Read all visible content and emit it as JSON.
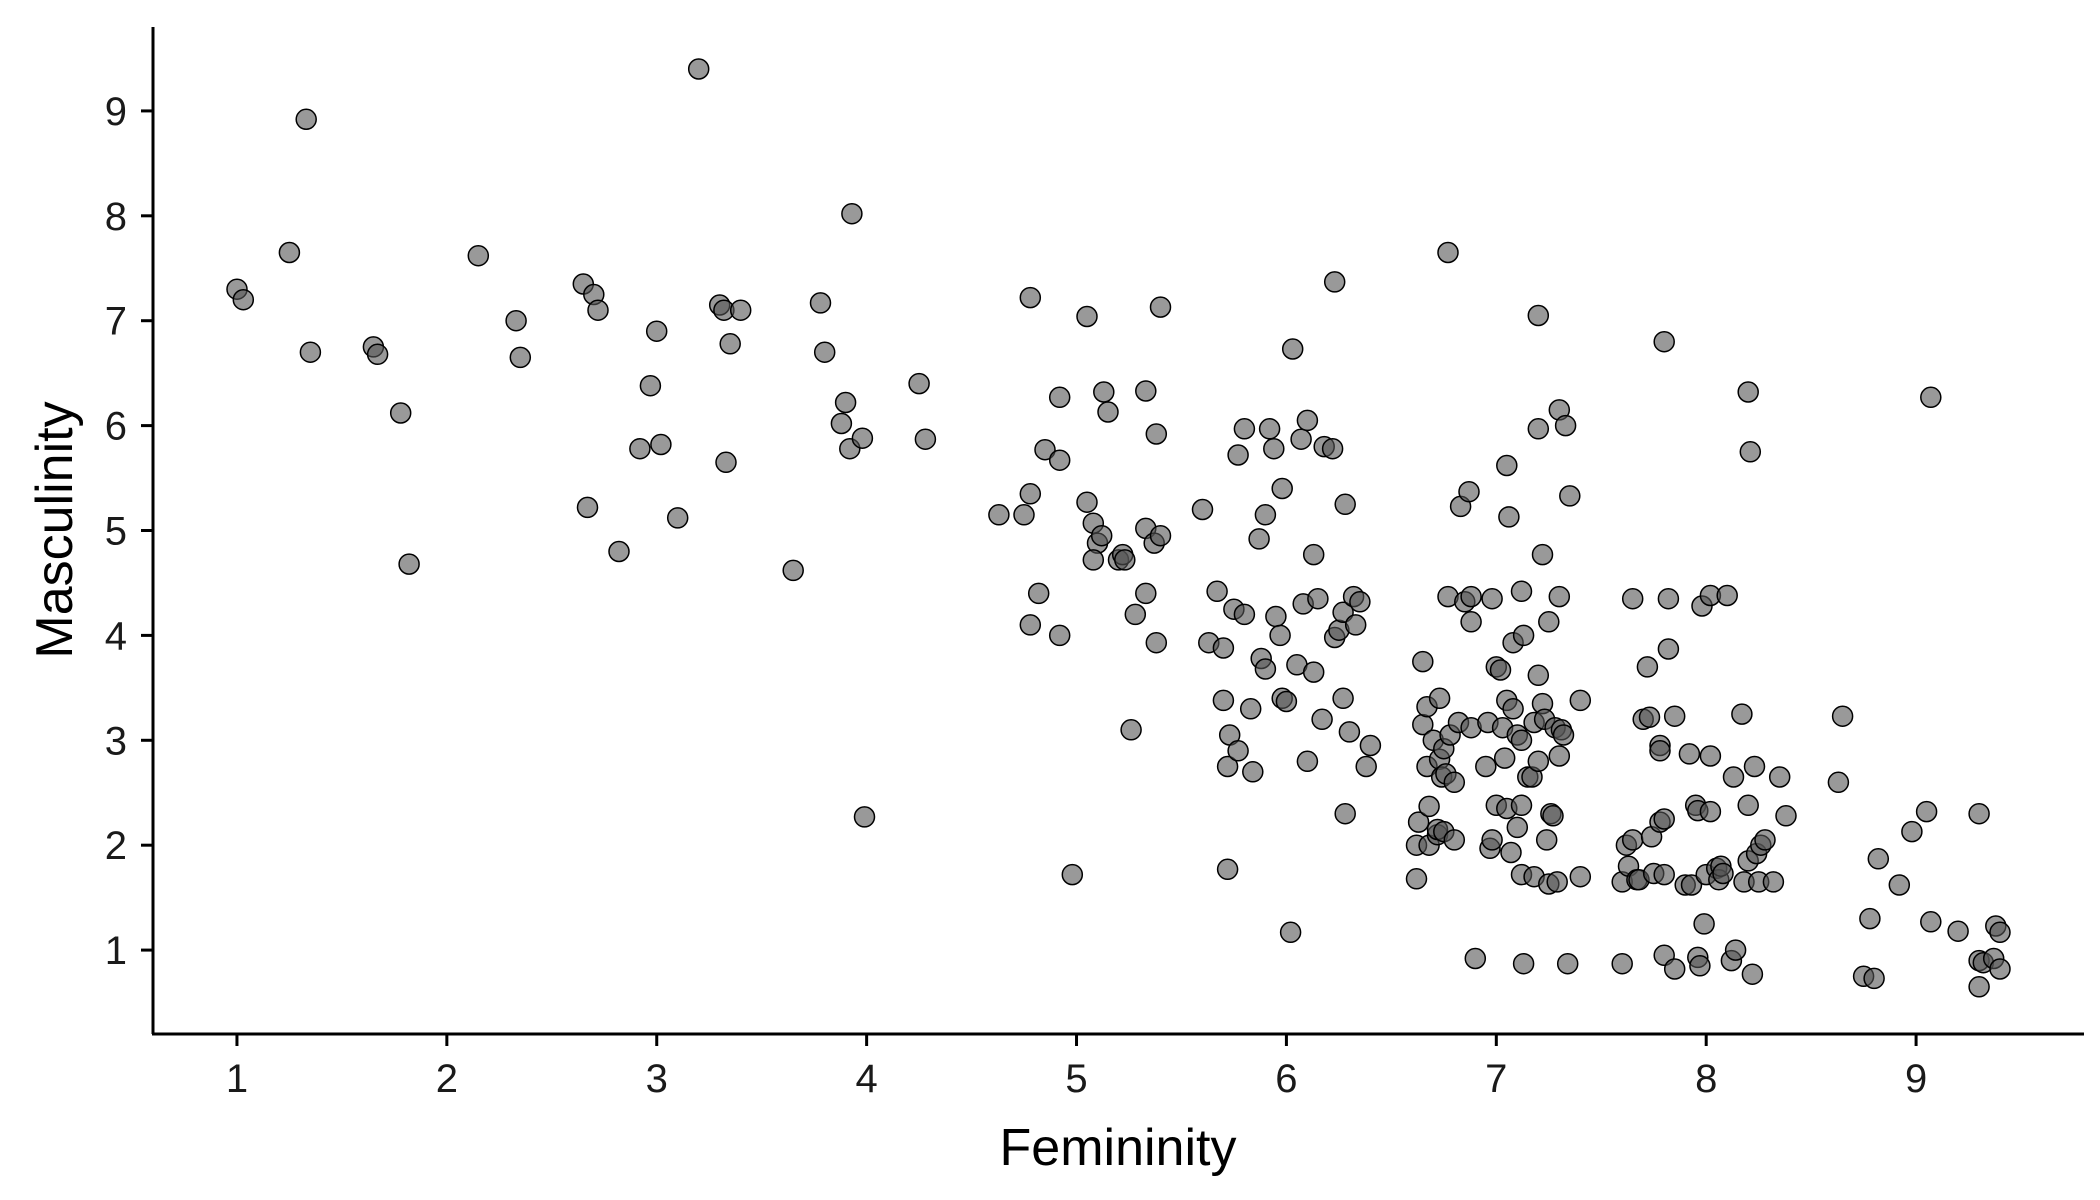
{
  "chart_data": {
    "type": "scatter",
    "xlabel": "Femininity",
    "ylabel": "Masculinity",
    "xlim": [
      0.6,
      9.8
    ],
    "ylim": [
      0.2,
      9.8
    ],
    "x_ticks": [
      1,
      2,
      3,
      4,
      5,
      6,
      7,
      8,
      9
    ],
    "y_ticks": [
      1,
      2,
      3,
      4,
      5,
      6,
      7,
      8,
      9
    ],
    "grid": false,
    "legend": "none",
    "point_color": "#555555",
    "point_opacity": 0.6,
    "points": [
      [
        1.0,
        7.3
      ],
      [
        1.03,
        7.2
      ],
      [
        1.25,
        7.65
      ],
      [
        1.33,
        8.92
      ],
      [
        1.35,
        6.7
      ],
      [
        1.65,
        6.75
      ],
      [
        1.67,
        6.68
      ],
      [
        1.78,
        6.12
      ],
      [
        1.82,
        4.68
      ],
      [
        2.15,
        7.62
      ],
      [
        2.33,
        7.0
      ],
      [
        2.35,
        6.65
      ],
      [
        2.65,
        7.35
      ],
      [
        2.7,
        7.25
      ],
      [
        2.72,
        7.1
      ],
      [
        2.67,
        5.22
      ],
      [
        2.82,
        4.8
      ],
      [
        2.92,
        5.78
      ],
      [
        2.97,
        6.38
      ],
      [
        3.0,
        6.9
      ],
      [
        3.02,
        5.82
      ],
      [
        3.1,
        5.12
      ],
      [
        3.2,
        9.4
      ],
      [
        3.3,
        7.15
      ],
      [
        3.32,
        7.1
      ],
      [
        3.35,
        6.78
      ],
      [
        3.33,
        5.65
      ],
      [
        3.4,
        7.1
      ],
      [
        3.65,
        4.62
      ],
      [
        3.78,
        7.17
      ],
      [
        3.8,
        6.7
      ],
      [
        3.9,
        6.22
      ],
      [
        3.88,
        6.02
      ],
      [
        3.92,
        5.78
      ],
      [
        3.98,
        5.88
      ],
      [
        3.93,
        8.02
      ],
      [
        3.99,
        2.27
      ],
      [
        4.25,
        6.4
      ],
      [
        4.28,
        5.87
      ],
      [
        4.63,
        5.15
      ],
      [
        4.75,
        5.15
      ],
      [
        4.78,
        5.35
      ],
      [
        4.78,
        4.1
      ],
      [
        4.78,
        7.22
      ],
      [
        4.82,
        4.4
      ],
      [
        4.85,
        5.77
      ],
      [
        4.92,
        6.27
      ],
      [
        4.92,
        5.67
      ],
      [
        4.92,
        4.0
      ],
      [
        4.98,
        1.72
      ],
      [
        5.05,
        7.04
      ],
      [
        5.05,
        5.27
      ],
      [
        5.08,
        5.07
      ],
      [
        5.1,
        4.88
      ],
      [
        5.12,
        4.95
      ],
      [
        5.13,
        6.32
      ],
      [
        5.15,
        6.13
      ],
      [
        5.08,
        4.72
      ],
      [
        5.2,
        4.72
      ],
      [
        5.22,
        4.77
      ],
      [
        5.23,
        4.72
      ],
      [
        5.26,
        3.1
      ],
      [
        5.28,
        4.2
      ],
      [
        5.33,
        6.33
      ],
      [
        5.33,
        5.02
      ],
      [
        5.33,
        4.4
      ],
      [
        5.37,
        4.88
      ],
      [
        5.38,
        3.93
      ],
      [
        5.4,
        4.95
      ],
      [
        5.38,
        5.92
      ],
      [
        5.4,
        7.13
      ],
      [
        5.6,
        5.2
      ],
      [
        5.63,
        3.93
      ],
      [
        5.67,
        4.42
      ],
      [
        5.7,
        3.38
      ],
      [
        5.7,
        3.88
      ],
      [
        5.72,
        2.75
      ],
      [
        5.72,
        1.77
      ],
      [
        5.73,
        3.05
      ],
      [
        5.75,
        4.25
      ],
      [
        5.77,
        5.72
      ],
      [
        5.77,
        2.9
      ],
      [
        5.8,
        5.97
      ],
      [
        5.8,
        4.2
      ],
      [
        5.83,
        3.3
      ],
      [
        5.84,
        2.7
      ],
      [
        5.87,
        4.92
      ],
      [
        5.88,
        3.78
      ],
      [
        5.9,
        5.15
      ],
      [
        5.9,
        3.68
      ],
      [
        5.92,
        5.97
      ],
      [
        5.94,
        5.78
      ],
      [
        5.95,
        4.18
      ],
      [
        5.97,
        4.0
      ],
      [
        5.98,
        5.4
      ],
      [
        5.98,
        3.4
      ],
      [
        6.0,
        3.37
      ],
      [
        6.02,
        1.17
      ],
      [
        6.03,
        6.73
      ],
      [
        6.05,
        3.72
      ],
      [
        6.07,
        5.87
      ],
      [
        6.08,
        4.3
      ],
      [
        6.1,
        6.05
      ],
      [
        6.1,
        2.8
      ],
      [
        6.13,
        4.77
      ],
      [
        6.13,
        3.65
      ],
      [
        6.15,
        4.35
      ],
      [
        6.17,
        3.2
      ],
      [
        6.18,
        5.8
      ],
      [
        6.22,
        5.78
      ],
      [
        6.23,
        7.37
      ],
      [
        6.23,
        3.98
      ],
      [
        6.25,
        4.05
      ],
      [
        6.27,
        4.22
      ],
      [
        6.27,
        3.4
      ],
      [
        6.28,
        5.25
      ],
      [
        6.28,
        2.3
      ],
      [
        6.3,
        3.08
      ],
      [
        6.32,
        4.37
      ],
      [
        6.33,
        4.1
      ],
      [
        6.35,
        4.32
      ],
      [
        6.38,
        2.75
      ],
      [
        6.4,
        2.95
      ],
      [
        6.62,
        1.68
      ],
      [
        6.62,
        2.0
      ],
      [
        6.63,
        2.22
      ],
      [
        6.65,
        3.75
      ],
      [
        6.65,
        3.15
      ],
      [
        6.67,
        3.32
      ],
      [
        6.67,
        2.75
      ],
      [
        6.68,
        2.37
      ],
      [
        6.68,
        2.0
      ],
      [
        6.7,
        3.0
      ],
      [
        6.72,
        2.1
      ],
      [
        6.72,
        2.15
      ],
      [
        6.73,
        2.82
      ],
      [
        6.73,
        3.4
      ],
      [
        6.74,
        2.65
      ],
      [
        6.75,
        2.92
      ],
      [
        6.75,
        2.13
      ],
      [
        6.76,
        2.68
      ],
      [
        6.77,
        4.37
      ],
      [
        6.77,
        7.65
      ],
      [
        6.78,
        3.05
      ],
      [
        6.8,
        2.6
      ],
      [
        6.8,
        2.05
      ],
      [
        6.82,
        3.17
      ],
      [
        6.83,
        5.23
      ],
      [
        6.85,
        4.32
      ],
      [
        6.87,
        5.37
      ],
      [
        6.88,
        4.37
      ],
      [
        6.88,
        4.13
      ],
      [
        6.88,
        3.12
      ],
      [
        6.9,
        0.92
      ],
      [
        6.95,
        2.75
      ],
      [
        6.96,
        3.17
      ],
      [
        6.97,
        1.97
      ],
      [
        6.98,
        4.35
      ],
      [
        6.98,
        2.05
      ],
      [
        7.0,
        3.7
      ],
      [
        7.0,
        2.38
      ],
      [
        7.02,
        3.67
      ],
      [
        7.03,
        3.12
      ],
      [
        7.04,
        2.83
      ],
      [
        7.05,
        3.38
      ],
      [
        7.05,
        2.35
      ],
      [
        7.05,
        5.62
      ],
      [
        7.06,
        5.13
      ],
      [
        7.07,
        1.93
      ],
      [
        7.08,
        3.93
      ],
      [
        7.08,
        3.3
      ],
      [
        7.1,
        3.05
      ],
      [
        7.1,
        2.17
      ],
      [
        7.12,
        4.42
      ],
      [
        7.12,
        3.0
      ],
      [
        7.12,
        2.38
      ],
      [
        7.12,
        1.72
      ],
      [
        7.13,
        4.0
      ],
      [
        7.13,
        0.87
      ],
      [
        7.15,
        2.65
      ],
      [
        7.17,
        2.65
      ],
      [
        7.18,
        3.17
      ],
      [
        7.18,
        1.7
      ],
      [
        7.2,
        7.05
      ],
      [
        7.2,
        5.97
      ],
      [
        7.2,
        3.62
      ],
      [
        7.2,
        2.8
      ],
      [
        7.22,
        4.77
      ],
      [
        7.22,
        3.35
      ],
      [
        7.23,
        3.2
      ],
      [
        7.24,
        2.05
      ],
      [
        7.25,
        4.13
      ],
      [
        7.25,
        1.63
      ],
      [
        7.26,
        2.3
      ],
      [
        7.27,
        2.28
      ],
      [
        7.28,
        3.12
      ],
      [
        7.29,
        1.65
      ],
      [
        7.3,
        6.15
      ],
      [
        7.3,
        4.37
      ],
      [
        7.3,
        2.85
      ],
      [
        7.31,
        3.1
      ],
      [
        7.32,
        3.05
      ],
      [
        7.33,
        6.0
      ],
      [
        7.34,
        0.87
      ],
      [
        7.35,
        5.33
      ],
      [
        7.4,
        3.38
      ],
      [
        7.4,
        1.7
      ],
      [
        7.6,
        0.87
      ],
      [
        7.6,
        1.65
      ],
      [
        7.62,
        2.0
      ],
      [
        7.63,
        1.8
      ],
      [
        7.65,
        2.05
      ],
      [
        7.65,
        4.35
      ],
      [
        7.67,
        1.67
      ],
      [
        7.68,
        1.67
      ],
      [
        7.7,
        3.2
      ],
      [
        7.72,
        3.7
      ],
      [
        7.73,
        3.22
      ],
      [
        7.74,
        2.08
      ],
      [
        7.75,
        1.73
      ],
      [
        7.78,
        2.95
      ],
      [
        7.78,
        2.22
      ],
      [
        7.78,
        2.9
      ],
      [
        7.8,
        2.25
      ],
      [
        7.8,
        1.72
      ],
      [
        7.8,
        6.8
      ],
      [
        7.8,
        0.95
      ],
      [
        7.82,
        3.87
      ],
      [
        7.82,
        4.35
      ],
      [
        7.85,
        3.23
      ],
      [
        7.85,
        0.82
      ],
      [
        7.9,
        1.62
      ],
      [
        7.92,
        2.87
      ],
      [
        7.93,
        1.62
      ],
      [
        7.95,
        2.38
      ],
      [
        7.96,
        2.33
      ],
      [
        7.96,
        0.93
      ],
      [
        7.97,
        0.85
      ],
      [
        7.98,
        4.28
      ],
      [
        7.99,
        1.25
      ],
      [
        8.0,
        1.72
      ],
      [
        8.02,
        4.38
      ],
      [
        8.02,
        2.32
      ],
      [
        8.02,
        2.85
      ],
      [
        8.05,
        1.78
      ],
      [
        8.06,
        1.67
      ],
      [
        8.07,
        1.8
      ],
      [
        8.08,
        1.73
      ],
      [
        8.1,
        4.38
      ],
      [
        8.12,
        0.9
      ],
      [
        8.13,
        2.65
      ],
      [
        8.14,
        1.0
      ],
      [
        8.17,
        3.25
      ],
      [
        8.18,
        1.65
      ],
      [
        8.2,
        6.32
      ],
      [
        8.2,
        2.38
      ],
      [
        8.2,
        1.85
      ],
      [
        8.21,
        5.75
      ],
      [
        8.22,
        0.77
      ],
      [
        8.23,
        2.75
      ],
      [
        8.24,
        1.92
      ],
      [
        8.25,
        1.65
      ],
      [
        8.26,
        2.0
      ],
      [
        8.28,
        2.05
      ],
      [
        8.32,
        1.65
      ],
      [
        8.35,
        2.65
      ],
      [
        8.38,
        2.28
      ],
      [
        8.63,
        2.6
      ],
      [
        8.65,
        3.23
      ],
      [
        8.75,
        0.75
      ],
      [
        8.78,
        1.3
      ],
      [
        8.8,
        0.73
      ],
      [
        8.82,
        1.87
      ],
      [
        8.92,
        1.62
      ],
      [
        8.98,
        2.13
      ],
      [
        9.05,
        2.32
      ],
      [
        9.07,
        1.27
      ],
      [
        9.07,
        6.27
      ],
      [
        9.2,
        1.18
      ],
      [
        9.3,
        2.3
      ],
      [
        9.3,
        0.9
      ],
      [
        9.3,
        0.65
      ],
      [
        9.32,
        0.88
      ],
      [
        9.37,
        0.92
      ],
      [
        9.38,
        1.23
      ],
      [
        9.4,
        1.17
      ],
      [
        9.4,
        0.82
      ]
    ]
  }
}
